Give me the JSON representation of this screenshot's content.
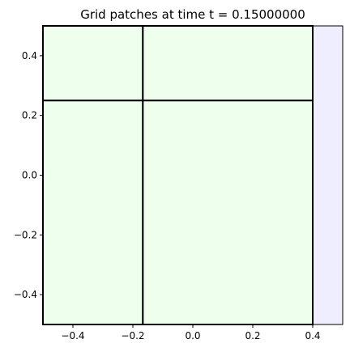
{
  "chart_data": {
    "type": "patches",
    "title": "Grid patches at time t =     0.15000000",
    "xlabel": "",
    "ylabel": "",
    "xlim": [
      -0.5,
      0.5
    ],
    "ylim": [
      -0.5,
      0.5
    ],
    "grid": false,
    "x_ticks": [
      -0.4,
      -0.2,
      0.0,
      0.2,
      0.4
    ],
    "y_ticks": [
      -0.4,
      -0.2,
      0.0,
      0.2,
      0.4
    ],
    "x_tick_labels": [
      "−0.4",
      "−0.2",
      "0.0",
      "0.2",
      "0.4"
    ],
    "y_tick_labels": [
      "−0.4",
      "−0.2",
      "0.0",
      "0.2",
      "0.4"
    ],
    "colors": {
      "level1": "#eeeeff",
      "level2": "#eeffee",
      "edge": "#000000"
    },
    "patches": [
      {
        "x": [
          -0.5,
          0.5
        ],
        "y": [
          -0.5,
          0.5
        ],
        "level": 1
      },
      {
        "x": [
          -0.5,
          -0.166667
        ],
        "y": [
          0.25,
          0.5
        ],
        "level": 2
      },
      {
        "x": [
          -0.166667,
          0.4
        ],
        "y": [
          0.25,
          0.5
        ],
        "level": 2
      },
      {
        "x": [
          -0.5,
          -0.166667
        ],
        "y": [
          -0.5,
          0.25
        ],
        "level": 2
      },
      {
        "x": [
          -0.166667,
          0.4
        ],
        "y": [
          -0.5,
          0.25
        ],
        "level": 2
      }
    ]
  }
}
